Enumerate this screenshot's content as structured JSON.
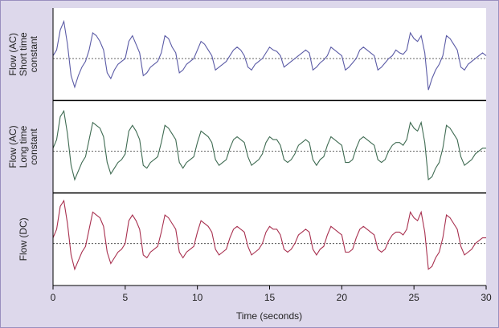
{
  "chart_data": {
    "type": "line",
    "xlabel": "Time (seconds)",
    "xlim": [
      0,
      30
    ],
    "xticks": [
      0,
      5,
      10,
      15,
      20,
      25,
      30
    ],
    "ylim": [
      -1.3,
      1.6
    ],
    "x": [
      0,
      0.25,
      0.5,
      0.75,
      1,
      1.25,
      1.5,
      1.75,
      2,
      2.25,
      2.5,
      2.75,
      3,
      3.25,
      3.5,
      3.75,
      4,
      4.25,
      4.5,
      4.75,
      5,
      5.25,
      5.5,
      5.75,
      6,
      6.25,
      6.5,
      6.75,
      7,
      7.25,
      7.5,
      7.75,
      8,
      8.25,
      8.5,
      8.75,
      9,
      9.25,
      9.5,
      9.75,
      10,
      10.25,
      10.5,
      10.75,
      11,
      11.25,
      11.5,
      11.75,
      12,
      12.25,
      12.5,
      12.75,
      13,
      13.25,
      13.5,
      13.75,
      14,
      14.25,
      14.5,
      14.75,
      15,
      15.25,
      15.5,
      15.75,
      16,
      16.25,
      16.5,
      16.75,
      17,
      17.25,
      17.5,
      17.75,
      18,
      18.25,
      18.5,
      18.75,
      19,
      19.25,
      19.5,
      19.75,
      20,
      20.25,
      20.5,
      20.75,
      21,
      21.25,
      21.5,
      21.75,
      22,
      22.25,
      22.5,
      22.75,
      23,
      23.25,
      23.5,
      23.75,
      24,
      24.25,
      24.5,
      24.75,
      25,
      25.25,
      25.5,
      25.75,
      26,
      26.25,
      26.5,
      26.75,
      27,
      27.25,
      27.5,
      27.75,
      28,
      28.25,
      28.5,
      28.75,
      29,
      29.25,
      29.5,
      29.75,
      30
    ],
    "series": [
      {
        "name": [
          "Flow (AC)",
          "Short time",
          "constant"
        ],
        "color": "#5b5ba6",
        "values": [
          0.1,
          0.3,
          1.0,
          1.3,
          0.5,
          -0.6,
          -1.0,
          -0.6,
          -0.3,
          -0.1,
          0.3,
          0.9,
          0.8,
          0.6,
          0.3,
          -0.5,
          -0.7,
          -0.4,
          -0.2,
          -0.1,
          0,
          0.6,
          0.8,
          0.5,
          0.2,
          -0.6,
          -0.5,
          -0.3,
          -0.2,
          -0.1,
          0.2,
          0.8,
          0.7,
          0.4,
          0.2,
          -0.5,
          -0.4,
          -0.2,
          -0.1,
          0,
          0.3,
          0.6,
          0.5,
          0.3,
          0.1,
          -0.4,
          -0.3,
          -0.2,
          -0.1,
          0.1,
          0.3,
          0.4,
          0.3,
          0.1,
          -0.3,
          -0.4,
          -0.2,
          -0.1,
          0,
          0.2,
          0.4,
          0.3,
          0.25,
          0.1,
          -0.3,
          -0.2,
          -0.1,
          0,
          0.1,
          0.2,
          0.3,
          0.2,
          -0.4,
          -0.3,
          -0.15,
          -0.05,
          0.1,
          0.4,
          0.3,
          0.2,
          0.1,
          -0.4,
          -0.3,
          -0.15,
          0,
          0.3,
          0.4,
          0.3,
          0.2,
          0.1,
          -0.4,
          -0.3,
          -0.15,
          0,
          0.1,
          0.3,
          0.2,
          0.15,
          0.3,
          0.9,
          0.7,
          0.6,
          0.8,
          0.2,
          -1.1,
          -0.7,
          -0.4,
          -0.2,
          0.1,
          0.8,
          0.7,
          0.5,
          0.3,
          -0.3,
          -0.4,
          -0.2,
          -0.1,
          0,
          0.1,
          0.2,
          0.1
        ]
      },
      {
        "name": [
          "Flow (AC)",
          "Long time",
          "constant"
        ],
        "color": "#3f6b52",
        "values": [
          0.1,
          0.4,
          1.2,
          1.4,
          0.6,
          -0.5,
          -1.0,
          -0.7,
          -0.4,
          -0.2,
          0.4,
          1.0,
          0.9,
          0.8,
          0.5,
          -0.4,
          -0.8,
          -0.6,
          -0.4,
          -0.3,
          -0.1,
          0.7,
          0.9,
          0.7,
          0.4,
          -0.5,
          -0.6,
          -0.4,
          -0.3,
          -0.2,
          0.3,
          0.9,
          0.8,
          0.6,
          0.4,
          -0.4,
          -0.6,
          -0.4,
          -0.3,
          -0.2,
          0.3,
          0.7,
          0.6,
          0.5,
          0.3,
          -0.3,
          -0.5,
          -0.4,
          -0.3,
          0.1,
          0.4,
          0.5,
          0.4,
          0.3,
          -0.2,
          -0.5,
          -0.4,
          -0.3,
          -0.1,
          0.3,
          0.5,
          0.4,
          0.4,
          0.2,
          -0.3,
          -0.4,
          -0.3,
          -0.1,
          0.2,
          0.3,
          0.4,
          0.3,
          -0.3,
          -0.5,
          -0.3,
          -0.2,
          0.2,
          0.5,
          0.4,
          0.3,
          0.2,
          -0.4,
          -0.4,
          -0.3,
          0.1,
          0.4,
          0.5,
          0.4,
          0.3,
          0.2,
          -0.3,
          -0.4,
          -0.3,
          0,
          0.2,
          0.3,
          0.3,
          0.2,
          0.4,
          1.0,
          0.8,
          0.7,
          1.0,
          0.3,
          -1.0,
          -0.9,
          -0.6,
          -0.4,
          0.1,
          0.9,
          0.8,
          0.6,
          0.4,
          -0.2,
          -0.5,
          -0.4,
          -0.3,
          -0.1,
          0,
          0.1,
          0.1
        ]
      },
      {
        "name": [
          "Flow (DC)"
        ],
        "color": "#a8304f",
        "values": [
          0.2,
          0.5,
          1.3,
          1.5,
          0.7,
          -0.4,
          -0.9,
          -0.6,
          -0.3,
          -0.1,
          0.5,
          1.1,
          1.0,
          0.9,
          0.6,
          -0.3,
          -0.7,
          -0.5,
          -0.3,
          -0.2,
          0,
          0.8,
          1.0,
          0.8,
          0.5,
          -0.4,
          -0.5,
          -0.3,
          -0.2,
          -0.1,
          0.4,
          1.0,
          0.9,
          0.7,
          0.5,
          -0.3,
          -0.5,
          -0.3,
          -0.2,
          -0.1,
          0.4,
          0.8,
          0.7,
          0.6,
          0.4,
          -0.2,
          -0.4,
          -0.3,
          -0.2,
          0.2,
          0.5,
          0.6,
          0.5,
          0.4,
          -0.1,
          -0.4,
          -0.3,
          -0.2,
          0,
          0.4,
          0.6,
          0.5,
          0.5,
          0.3,
          -0.2,
          -0.3,
          -0.2,
          0,
          0.3,
          0.4,
          0.5,
          0.4,
          -0.2,
          -0.4,
          -0.2,
          -0.1,
          0.3,
          0.6,
          0.5,
          0.4,
          0.3,
          -0.3,
          -0.3,
          -0.2,
          0.2,
          0.5,
          0.6,
          0.5,
          0.4,
          0.3,
          -0.2,
          -0.3,
          -0.2,
          0.1,
          0.3,
          0.4,
          0.4,
          0.3,
          0.5,
          1.1,
          0.9,
          0.8,
          1.1,
          0.4,
          -0.9,
          -0.8,
          -0.5,
          -0.3,
          0.2,
          1.0,
          0.9,
          0.7,
          0.5,
          -0.1,
          -0.4,
          -0.3,
          -0.2,
          0,
          0.1,
          0.2,
          0.2
        ]
      }
    ]
  }
}
